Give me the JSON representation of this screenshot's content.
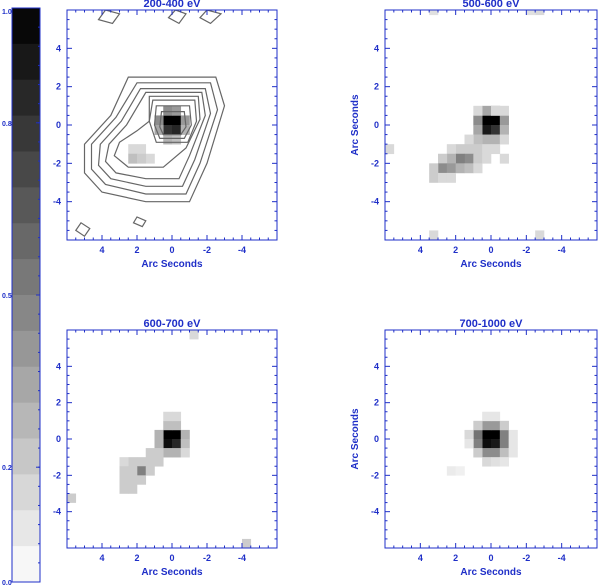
{
  "colors": {
    "axis": "#1f2fc8",
    "contour": "#666666"
  },
  "colorbar": {
    "tick_labels": [
      "1.0",
      "0.8",
      "0.5",
      "0.2",
      "0.0"
    ],
    "tick_values": [
      1.0,
      0.8,
      0.5,
      0.2,
      0.0
    ],
    "levels": 16,
    "range": [
      0.0,
      1.0
    ]
  },
  "chart_data": [
    {
      "type": "heatmap",
      "title": "200-400 eV",
      "xlabel": "Arc Seconds",
      "ylabel": "",
      "xlim": [
        6,
        -6
      ],
      "ylim": [
        -6,
        6
      ],
      "xticks": [
        4,
        2,
        0,
        -2,
        -4
      ],
      "yticks": [
        4,
        2,
        0,
        -2,
        -4
      ],
      "pixel_size": 0.5,
      "pixels": [
        [
          0.25,
          0.25,
          1.0
        ],
        [
          -0.25,
          0.25,
          1.0
        ],
        [
          0.25,
          -0.25,
          0.8
        ],
        [
          -0.25,
          -0.25,
          0.85
        ],
        [
          0.75,
          0.25,
          0.45
        ],
        [
          -0.75,
          0.25,
          0.4
        ],
        [
          0.25,
          0.75,
          0.45
        ],
        [
          -0.25,
          0.75,
          0.4
        ],
        [
          0.25,
          -0.75,
          0.3
        ],
        [
          -0.25,
          -0.75,
          0.25
        ],
        [
          0.75,
          -0.25,
          0.35
        ],
        [
          -0.75,
          -0.25,
          0.3
        ],
        [
          2.25,
          -1.25,
          0.15
        ],
        [
          1.75,
          -1.25,
          0.15
        ],
        [
          1.25,
          -1.75,
          0.15
        ],
        [
          2.25,
          -1.75,
          0.25
        ],
        [
          1.75,
          -1.75,
          0.2
        ]
      ],
      "contours": [
        {
          "level": 0.05,
          "points": [
            [
              2.5,
              2.5
            ],
            [
              -2.5,
              2.5
            ],
            [
              -3.0,
              1.0
            ],
            [
              -2.0,
              -2.0
            ],
            [
              -1.0,
              -4.0
            ],
            [
              1.5,
              -4.0
            ],
            [
              4.0,
              -3.5
            ],
            [
              5.0,
              -2.5
            ],
            [
              5.0,
              -1.0
            ],
            [
              3.5,
              0.5
            ]
          ]
        },
        {
          "level": 0.1,
          "points": [
            [
              2.0,
              2.2
            ],
            [
              -2.2,
              2.2
            ],
            [
              -2.6,
              0.8
            ],
            [
              -1.6,
              -2.0
            ],
            [
              -0.8,
              -3.6
            ],
            [
              1.5,
              -3.6
            ],
            [
              3.8,
              -3.1
            ],
            [
              4.6,
              -2.3
            ],
            [
              4.6,
              -1.0
            ],
            [
              3.2,
              0.4
            ]
          ]
        },
        {
          "level": 0.15,
          "points": [
            [
              1.8,
              1.9
            ],
            [
              -1.9,
              1.9
            ],
            [
              -2.2,
              0.6
            ],
            [
              -1.3,
              -1.8
            ],
            [
              -0.6,
              -3.2
            ],
            [
              1.5,
              -3.2
            ],
            [
              3.5,
              -2.8
            ],
            [
              4.2,
              -2.1
            ],
            [
              4.1,
              -1.0
            ],
            [
              2.9,
              0.2
            ]
          ]
        },
        {
          "level": 0.2,
          "points": [
            [
              1.5,
              1.7
            ],
            [
              -1.7,
              1.7
            ],
            [
              -1.9,
              0.5
            ],
            [
              -1.0,
              -1.6
            ],
            [
              -0.4,
              -2.8
            ],
            [
              1.5,
              -2.8
            ],
            [
              3.2,
              -2.5
            ],
            [
              3.8,
              -1.9
            ],
            [
              3.6,
              -1.0
            ],
            [
              2.6,
              0.0
            ]
          ]
        },
        {
          "level": 0.3,
          "points": [
            [
              1.3,
              1.5
            ],
            [
              -1.5,
              1.5
            ],
            [
              -1.6,
              0.3
            ],
            [
              -0.8,
              -1.2
            ],
            [
              0.5,
              -2.2
            ],
            [
              2.5,
              -2.2
            ],
            [
              3.3,
              -1.6
            ],
            [
              3.0,
              -0.9
            ],
            [
              2.0,
              -0.3
            ],
            [
              1.3,
              0.2
            ]
          ]
        },
        {
          "level": 0.45,
          "points": [
            [
              1.1,
              1.3
            ],
            [
              -1.3,
              1.3
            ],
            [
              -1.4,
              0.2
            ],
            [
              -0.9,
              -0.9
            ],
            [
              0.9,
              -0.9
            ],
            [
              1.3,
              0.2
            ]
          ]
        },
        {
          "level": 0.6,
          "points": [
            [
              0.9,
              1.0
            ],
            [
              -1.0,
              1.0
            ],
            [
              -1.1,
              0.0
            ],
            [
              -0.7,
              -0.7
            ],
            [
              0.7,
              -0.7
            ],
            [
              1.0,
              0.0
            ]
          ]
        },
        {
          "level": 0.8,
          "points": [
            [
              0.6,
              0.7
            ],
            [
              -0.7,
              0.7
            ],
            [
              -0.8,
              -0.1
            ],
            [
              -0.5,
              -0.5
            ],
            [
              0.5,
              -0.5
            ],
            [
              0.7,
              -0.1
            ]
          ]
        },
        {
          "level": 0.05,
          "points": [
            [
              4.2,
              5.5
            ],
            [
              3.8,
              6.0
            ],
            [
              3.0,
              5.8
            ],
            [
              3.4,
              5.3
            ]
          ]
        },
        {
          "level": 0.05,
          "points": [
            [
              0.2,
              5.6
            ],
            [
              -0.2,
              6.0
            ],
            [
              -0.8,
              5.8
            ],
            [
              -0.4,
              5.3
            ]
          ]
        },
        {
          "level": 0.05,
          "points": [
            [
              -1.6,
              5.6
            ],
            [
              -2.0,
              6.0
            ],
            [
              -2.8,
              5.8
            ],
            [
              -2.2,
              5.3
            ]
          ]
        },
        {
          "level": 0.05,
          "points": [
            [
              5.5,
              -5.5
            ],
            [
              5.0,
              -5.8
            ],
            [
              4.7,
              -5.4
            ],
            [
              5.2,
              -5.1
            ]
          ]
        },
        {
          "level": 0.05,
          "points": [
            [
              2.2,
              -5.1
            ],
            [
              1.7,
              -5.3
            ],
            [
              1.5,
              -5.0
            ],
            [
              2.0,
              -4.8
            ]
          ]
        }
      ]
    },
    {
      "type": "heatmap",
      "title": "500-600 eV",
      "xlabel": "Arc Seconds",
      "ylabel": "Arc Seconds",
      "xlim": [
        6,
        -6
      ],
      "ylim": [
        -6,
        6
      ],
      "xticks": [
        4,
        2,
        0,
        -2,
        -4
      ],
      "yticks": [
        4,
        2,
        0,
        -2,
        -4
      ],
      "pixel_size": 0.5,
      "pixels": [
        [
          0.25,
          0.25,
          1.0
        ],
        [
          -0.25,
          0.25,
          1.0
        ],
        [
          0.25,
          -0.25,
          0.9
        ],
        [
          -0.25,
          -0.25,
          0.8
        ],
        [
          0.75,
          0.25,
          0.45
        ],
        [
          -0.75,
          0.25,
          0.4
        ],
        [
          0.25,
          0.75,
          0.35
        ],
        [
          -0.25,
          0.75,
          0.35
        ],
        [
          0.75,
          0.75,
          0.15
        ],
        [
          -0.75,
          0.75,
          0.15
        ],
        [
          0.75,
          -0.25,
          0.35
        ],
        [
          -0.75,
          -0.25,
          0.3
        ],
        [
          0.25,
          -0.75,
          0.3
        ],
        [
          -0.25,
          -0.75,
          0.3
        ],
        [
          0.75,
          -0.75,
          0.25
        ],
        [
          -0.75,
          -0.75,
          0.15
        ],
        [
          1.25,
          -0.75,
          0.15
        ],
        [
          1.25,
          -1.25,
          0.2
        ],
        [
          0.75,
          -1.25,
          0.2
        ],
        [
          0.25,
          -1.25,
          0.15
        ],
        [
          -0.25,
          -1.25,
          0.15
        ],
        [
          1.75,
          -1.25,
          0.2
        ],
        [
          2.25,
          -1.25,
          0.15
        ],
        [
          1.25,
          -1.75,
          0.45
        ],
        [
          1.75,
          -1.75,
          0.5
        ],
        [
          2.25,
          -1.75,
          0.3
        ],
        [
          0.75,
          -1.75,
          0.2
        ],
        [
          0.25,
          -1.75,
          0.15
        ],
        [
          -0.75,
          -1.75,
          0.15
        ],
        [
          2.75,
          -1.75,
          0.2
        ],
        [
          2.75,
          -2.25,
          0.45
        ],
        [
          2.25,
          -2.25,
          0.4
        ],
        [
          1.75,
          -2.25,
          0.3
        ],
        [
          1.25,
          -2.25,
          0.25
        ],
        [
          0.75,
          -2.25,
          0.15
        ],
        [
          3.25,
          -2.25,
          0.2
        ],
        [
          3.25,
          -2.75,
          0.2
        ],
        [
          2.75,
          -2.75,
          0.15
        ],
        [
          2.25,
          -2.75,
          0.15
        ],
        [
          -0.25,
          0.75,
          0.15
        ],
        [
          3.25,
          6.0,
          0.12
        ],
        [
          -2.75,
          6.0,
          0.15
        ],
        [
          -2.25,
          6.0,
          0.12
        ],
        [
          5.75,
          -1.25,
          0.15
        ],
        [
          3.25,
          -5.75,
          0.15
        ],
        [
          -2.75,
          -5.75,
          0.15
        ]
      ]
    },
    {
      "type": "heatmap",
      "title": "600-700 eV",
      "xlabel": "Arc Seconds",
      "ylabel": "",
      "xlim": [
        6,
        -6
      ],
      "ylim": [
        -6,
        6
      ],
      "xticks": [
        4,
        2,
        0,
        -2,
        -4
      ],
      "yticks": [
        4,
        2,
        0,
        -2,
        -4
      ],
      "pixel_size": 0.5,
      "pixels": [
        [
          0.25,
          0.25,
          1.0
        ],
        [
          -0.25,
          0.25,
          1.0
        ],
        [
          0.25,
          -0.25,
          0.95
        ],
        [
          -0.25,
          -0.25,
          0.85
        ],
        [
          0.75,
          0.25,
          0.3
        ],
        [
          -0.75,
          0.25,
          0.3
        ],
        [
          0.25,
          0.75,
          0.25
        ],
        [
          -0.25,
          0.75,
          0.25
        ],
        [
          0.25,
          1.25,
          0.15
        ],
        [
          -0.25,
          1.25,
          0.15
        ],
        [
          0.75,
          -0.25,
          0.3
        ],
        [
          -0.75,
          -0.25,
          0.25
        ],
        [
          0.25,
          -0.75,
          0.3
        ],
        [
          -0.25,
          -0.75,
          0.3
        ],
        [
          0.75,
          -0.75,
          0.2
        ],
        [
          -0.75,
          -0.75,
          0.15
        ],
        [
          1.25,
          -0.75,
          0.2
        ],
        [
          0.75,
          -1.25,
          0.2
        ],
        [
          1.25,
          -1.25,
          0.2
        ],
        [
          1.75,
          -1.25,
          0.2
        ],
        [
          2.25,
          -1.25,
          0.2
        ],
        [
          2.75,
          -1.25,
          0.15
        ],
        [
          1.75,
          -1.75,
          0.5
        ],
        [
          2.25,
          -1.75,
          0.2
        ],
        [
          2.75,
          -1.75,
          0.2
        ],
        [
          1.25,
          -1.75,
          0.2
        ],
        [
          2.25,
          -2.25,
          0.2
        ],
        [
          2.75,
          -2.25,
          0.2
        ],
        [
          1.75,
          -2.25,
          0.2
        ],
        [
          2.75,
          -2.75,
          0.2
        ],
        [
          2.25,
          -2.75,
          0.2
        ],
        [
          -1.25,
          5.75,
          0.15
        ],
        [
          5.75,
          -3.25,
          0.2
        ],
        [
          -4.25,
          -5.75,
          0.2
        ]
      ]
    },
    {
      "type": "heatmap",
      "title": "700-1000 eV",
      "xlabel": "Arc Seconds",
      "ylabel": "Arc Seconds",
      "xlim": [
        6,
        -6
      ],
      "ylim": [
        -6,
        6
      ],
      "xticks": [
        4,
        2,
        0,
        -2,
        -4
      ],
      "yticks": [
        4,
        2,
        0,
        -2,
        -4
      ],
      "pixel_size": 0.5,
      "pixels": [
        [
          0.25,
          0.25,
          1.0
        ],
        [
          -0.25,
          0.25,
          1.0
        ],
        [
          0.25,
          -0.25,
          0.95
        ],
        [
          -0.25,
          -0.25,
          0.9
        ],
        [
          0.75,
          0.25,
          0.55
        ],
        [
          -0.75,
          0.25,
          0.5
        ],
        [
          0.25,
          0.75,
          0.4
        ],
        [
          -0.25,
          0.75,
          0.4
        ],
        [
          0.75,
          0.75,
          0.2
        ],
        [
          -0.75,
          0.75,
          0.2
        ],
        [
          0.75,
          -0.25,
          0.5
        ],
        [
          -0.75,
          -0.25,
          0.5
        ],
        [
          0.25,
          -0.75,
          0.45
        ],
        [
          -0.25,
          -0.75,
          0.45
        ],
        [
          0.75,
          -0.75,
          0.2
        ],
        [
          -0.75,
          -0.75,
          0.25
        ],
        [
          0.25,
          1.25,
          0.1
        ],
        [
          -0.25,
          1.25,
          0.1
        ],
        [
          1.25,
          0.25,
          0.15
        ],
        [
          -1.25,
          0.25,
          0.1
        ],
        [
          1.25,
          -0.25,
          0.1
        ],
        [
          -1.25,
          -0.25,
          0.1
        ],
        [
          0.25,
          -1.25,
          0.15
        ],
        [
          -0.25,
          -1.25,
          0.12
        ],
        [
          -0.75,
          -1.25,
          0.1
        ],
        [
          -1.25,
          -0.75,
          0.1
        ],
        [
          2.25,
          -1.75,
          0.08
        ],
        [
          1.75,
          -1.75,
          0.06
        ]
      ]
    }
  ]
}
